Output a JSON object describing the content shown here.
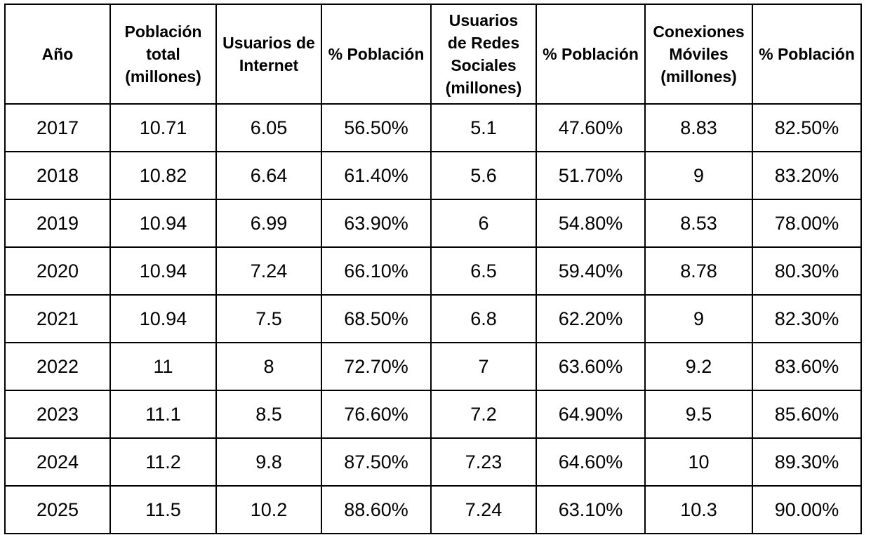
{
  "table": {
    "headers": [
      "Año",
      "Población\ntotal\n(millones)",
      "Usuarios de\nInternet",
      "% Población",
      "Usuarios\nde Redes\nSociales\n(millones)",
      "% Población",
      "Conexiones\nMóviles\n(millones)",
      "% Población"
    ],
    "rows": [
      [
        "2017",
        "10.71",
        "6.05",
        "56.50%",
        "5.1",
        "47.60%",
        "8.83",
        "82.50%"
      ],
      [
        "2018",
        "10.82",
        "6.64",
        "61.40%",
        "5.6",
        "51.70%",
        "9",
        "83.20%"
      ],
      [
        "2019",
        "10.94",
        "6.99",
        "63.90%",
        "6",
        "54.80%",
        "8.53",
        "78.00%"
      ],
      [
        "2020",
        "10.94",
        "7.24",
        "66.10%",
        "6.5",
        "59.40%",
        "8.78",
        "80.30%"
      ],
      [
        "2021",
        "10.94",
        "7.5",
        "68.50%",
        "6.8",
        "62.20%",
        "9",
        "82.30%"
      ],
      [
        "2022",
        "11",
        "8",
        "72.70%",
        "7",
        "63.60%",
        "9.2",
        "83.60%"
      ],
      [
        "2023",
        "11.1",
        "8.5",
        "76.60%",
        "7.2",
        "64.90%",
        "9.5",
        "85.60%"
      ],
      [
        "2024",
        "11.2",
        "9.8",
        "87.50%",
        "7.23",
        "64.60%",
        "10",
        "89.30%"
      ],
      [
        "2025",
        "11.5",
        "10.2",
        "88.60%",
        "7.24",
        "63.10%",
        "10.3",
        "90.00%"
      ]
    ]
  }
}
